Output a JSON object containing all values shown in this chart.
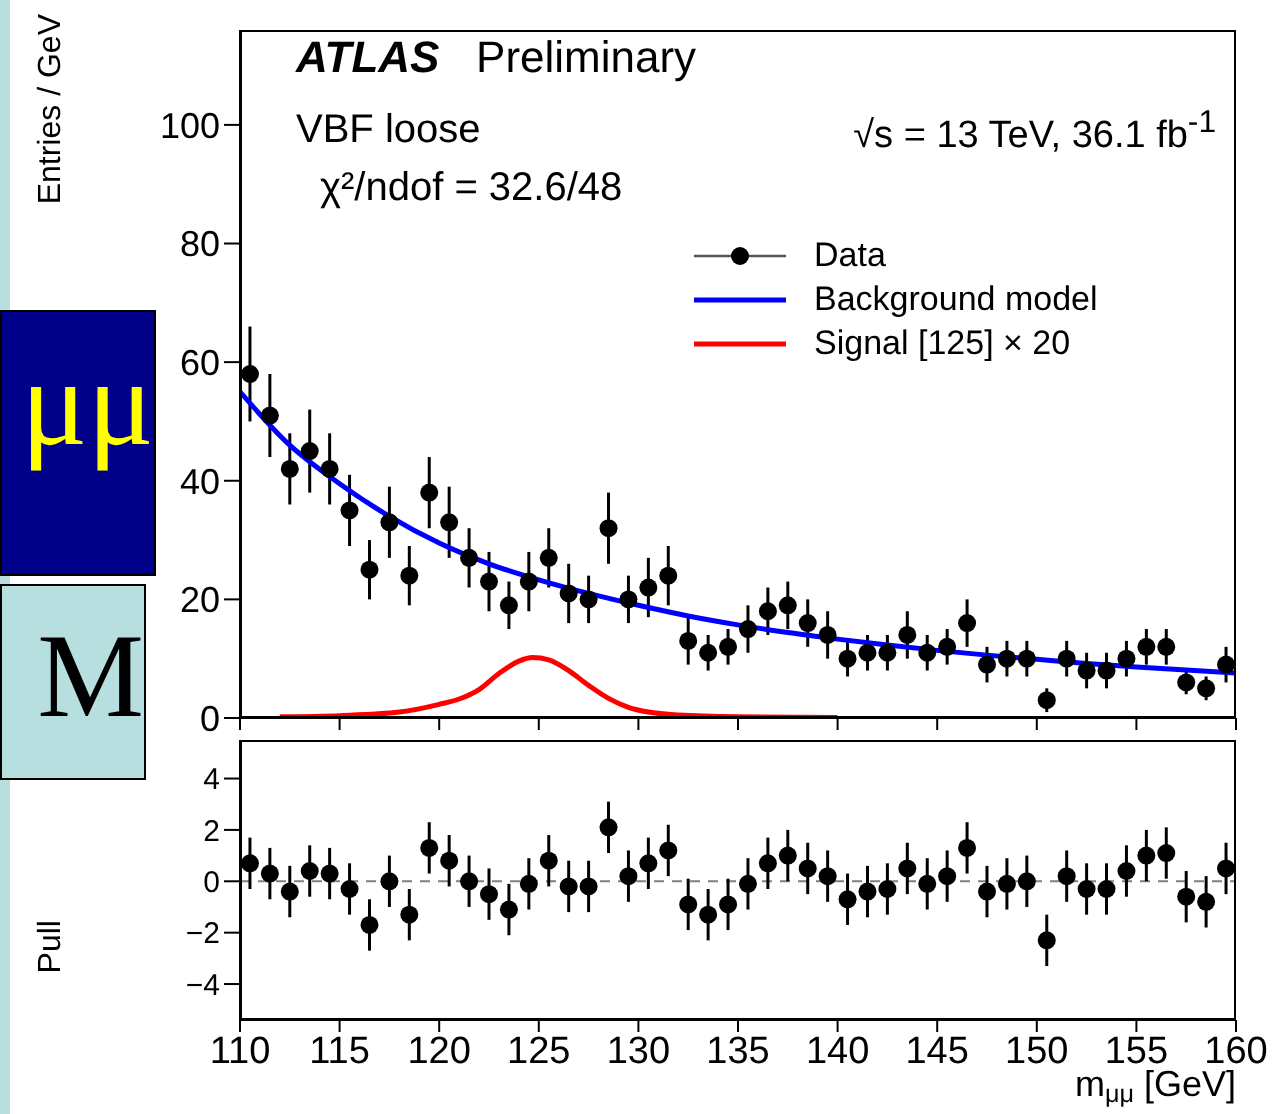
{
  "chart_data": [
    {
      "type": "scatter",
      "title": "ATLAS Preliminary",
      "ylabel": "Entries / GeV",
      "annotations": [
        "VBF loose",
        "χ²/ndof = 32.6/48",
        "√s = 13 TeV, 36.1 fb$^{-1}$",
        "μμ",
        "M"
      ],
      "xlim": [
        110,
        160
      ],
      "xticks": [
        110,
        115,
        120,
        125,
        130,
        135,
        140,
        145,
        150,
        155,
        160
      ],
      "ylim": [
        0,
        116
      ],
      "yticks": [
        0,
        20,
        40,
        60,
        80,
        100
      ],
      "tick_labels": "y",
      "legend": "top right",
      "series": [
        {
          "name": "Data",
          "color": "#000000",
          "marker": "circle",
          "x": [
            110.5,
            111.5,
            112.5,
            113.5,
            114.5,
            115.5,
            116.5,
            117.5,
            118.5,
            119.5,
            120.5,
            121.5,
            122.5,
            123.5,
            124.5,
            125.5,
            126.5,
            127.5,
            128.5,
            129.5,
            130.5,
            131.5,
            132.5,
            133.5,
            134.5,
            135.5,
            136.5,
            137.5,
            138.5,
            139.5,
            140.5,
            141.5,
            142.5,
            143.5,
            144.5,
            145.5,
            146.5,
            147.5,
            148.5,
            149.5,
            150.5,
            151.5,
            152.5,
            153.5,
            154.5,
            155.5,
            156.5,
            157.5,
            158.5,
            159.5
          ],
          "values": [
            58,
            51,
            42,
            45,
            42,
            35,
            25,
            33,
            24,
            38,
            33,
            27,
            23,
            19,
            23,
            27,
            21,
            20,
            32,
            20,
            22,
            24,
            13,
            11,
            12,
            15,
            18,
            19,
            16,
            14,
            10,
            11,
            11,
            14,
            11,
            12,
            16,
            9,
            10,
            10,
            3,
            10,
            8,
            8,
            10,
            12,
            12,
            6,
            5,
            9
          ],
          "errors": [
            8,
            7,
            6,
            7,
            6,
            6,
            5,
            6,
            5,
            6,
            6,
            5,
            5,
            4,
            5,
            5,
            5,
            4,
            6,
            4,
            5,
            5,
            4,
            3,
            3,
            4,
            4,
            4,
            4,
            4,
            3,
            3,
            3,
            4,
            3,
            3,
            4,
            3,
            3,
            3,
            2,
            3,
            3,
            3,
            3,
            3,
            3,
            2,
            2,
            3
          ]
        },
        {
          "name": "Background model",
          "type": "line",
          "color": "#0000ff",
          "x": [
            110,
            112.5,
            115,
            117.5,
            120,
            122.5,
            125,
            127.5,
            130,
            132.5,
            135,
            137.5,
            140,
            142.5,
            145,
            147.5,
            150,
            152.5,
            155,
            157.5,
            160
          ],
          "values": [
            55,
            46,
            39.5,
            34,
            29.5,
            26,
            23.3,
            21,
            19,
            17.2,
            15.7,
            14.4,
            13.3,
            12.3,
            11.4,
            10.6,
            9.9,
            9.2,
            8.6,
            8.1,
            7.6
          ]
        },
        {
          "name": "Signal [125] × 20",
          "type": "line",
          "color": "#ff0000",
          "x": [
            112,
            115,
            118,
            120,
            121,
            122,
            123,
            124,
            124.7,
            125.5,
            126.5,
            127.5,
            128.5,
            129.5,
            130.5,
            132,
            135,
            140
          ],
          "values": [
            0.2,
            0.4,
            1,
            2.3,
            3.2,
            4.8,
            7.5,
            9.6,
            10.2,
            9.8,
            8,
            5.5,
            3.3,
            1.8,
            1,
            0.5,
            0.2,
            0.1
          ]
        }
      ]
    },
    {
      "type": "scatter",
      "ylabel": "Pull",
      "xlabel": "m$_{μμ}$ [GeV]",
      "xlim": [
        110,
        160
      ],
      "xticks": [
        110,
        115,
        120,
        125,
        130,
        135,
        140,
        145,
        150,
        155,
        160
      ],
      "ylim": [
        -5.4,
        5.5
      ],
      "yticks": [
        {
          "value": -4,
          "label": "−4"
        },
        {
          "value": -2,
          "label": "−2"
        },
        0,
        2,
        4
      ],
      "ref_lines": [
        {
          "axis": "y",
          "value": 0,
          "line_style": "dashed",
          "color": "#808080"
        }
      ],
      "series": [
        {
          "color": "#000000",
          "marker": "circle",
          "x": [
            110.5,
            111.5,
            112.5,
            113.5,
            114.5,
            115.5,
            116.5,
            117.5,
            118.5,
            119.5,
            120.5,
            121.5,
            122.5,
            123.5,
            124.5,
            125.5,
            126.5,
            127.5,
            128.5,
            129.5,
            130.5,
            131.5,
            132.5,
            133.5,
            134.5,
            135.5,
            136.5,
            137.5,
            138.5,
            139.5,
            140.5,
            141.5,
            142.5,
            143.5,
            144.5,
            145.5,
            146.5,
            147.5,
            148.5,
            149.5,
            150.5,
            151.5,
            152.5,
            153.5,
            154.5,
            155.5,
            156.5,
            157.5,
            158.5,
            159.5
          ],
          "values": [
            0.7,
            0.3,
            -0.4,
            0.4,
            0.3,
            -0.3,
            -1.7,
            0,
            -1.3,
            1.3,
            0.8,
            0,
            -0.5,
            -1.1,
            -0.1,
            0.8,
            -0.2,
            -0.2,
            2.1,
            0.2,
            0.7,
            1.2,
            -0.9,
            -1.3,
            -0.9,
            -0.1,
            0.7,
            1,
            0.5,
            0.2,
            -0.7,
            -0.4,
            -0.3,
            0.5,
            -0.1,
            0.2,
            1.3,
            -0.4,
            -0.1,
            0,
            -2.3,
            0.2,
            -0.3,
            -0.3,
            0.4,
            1,
            1.1,
            -0.6,
            -0.8,
            0.5
          ],
          "errors": [
            1,
            1,
            1,
            1,
            1,
            1,
            1,
            1,
            1,
            1,
            1,
            1,
            1,
            1,
            1,
            1,
            1,
            1,
            1,
            1,
            1,
            1,
            1,
            1,
            1,
            1,
            1,
            1,
            1,
            1,
            1,
            1,
            1,
            1,
            1,
            1,
            1,
            1,
            1,
            1,
            1,
            1,
            1,
            1,
            1,
            1,
            1,
            1,
            1,
            1
          ]
        }
      ]
    }
  ]
}
